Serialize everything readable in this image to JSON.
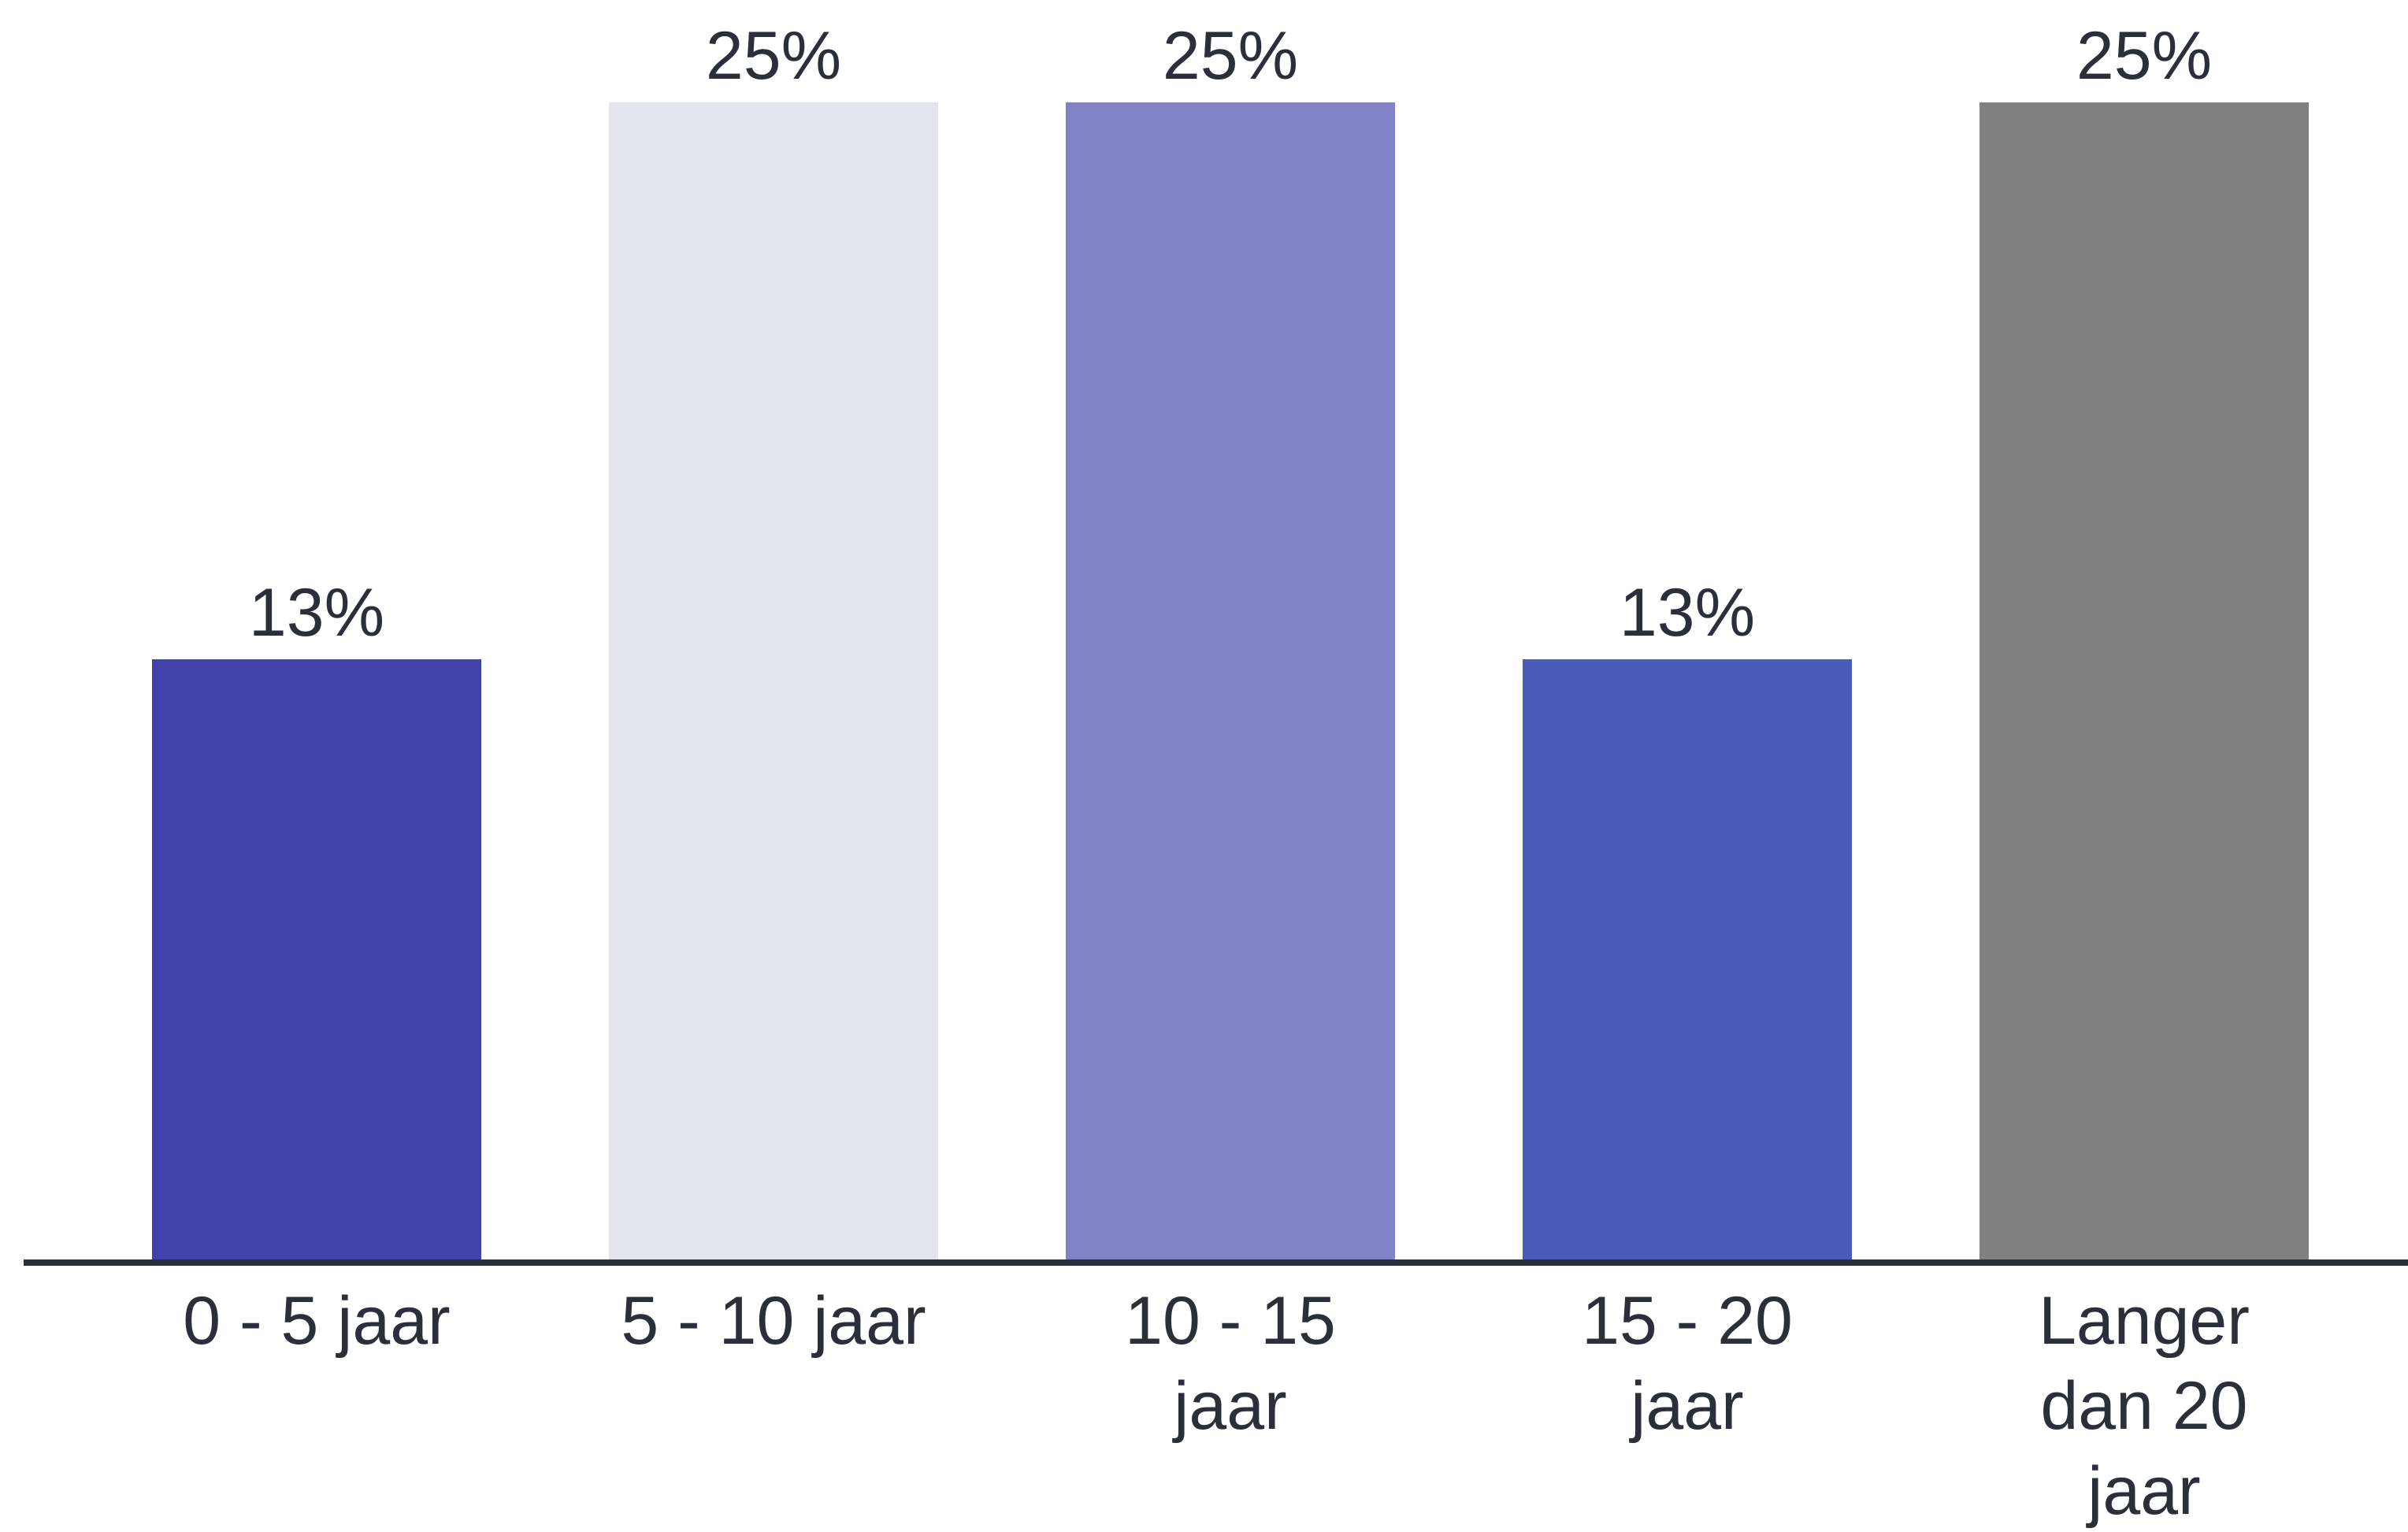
{
  "chart_data": {
    "type": "bar",
    "categories": [
      [
        "0 - 5 jaar"
      ],
      [
        "5 - 10 jaar"
      ],
      [
        "10 - 15",
        "jaar"
      ],
      [
        "15 - 20",
        "jaar"
      ],
      [
        "Langer",
        "dan 20",
        "jaar"
      ]
    ],
    "values": [
      13,
      25,
      25,
      13,
      25
    ],
    "value_labels": [
      "13%",
      "25%",
      "25%",
      "13%",
      "25%"
    ],
    "colors": [
      "#4142aa",
      "#e3e4ed",
      "#8283c6",
      "#495db8",
      "#808080"
    ],
    "axis_color": "#2b2f3a",
    "ylim": [
      0,
      25
    ],
    "grid": false,
    "legend": "none",
    "title": "",
    "xlabel": "",
    "ylabel": ""
  }
}
